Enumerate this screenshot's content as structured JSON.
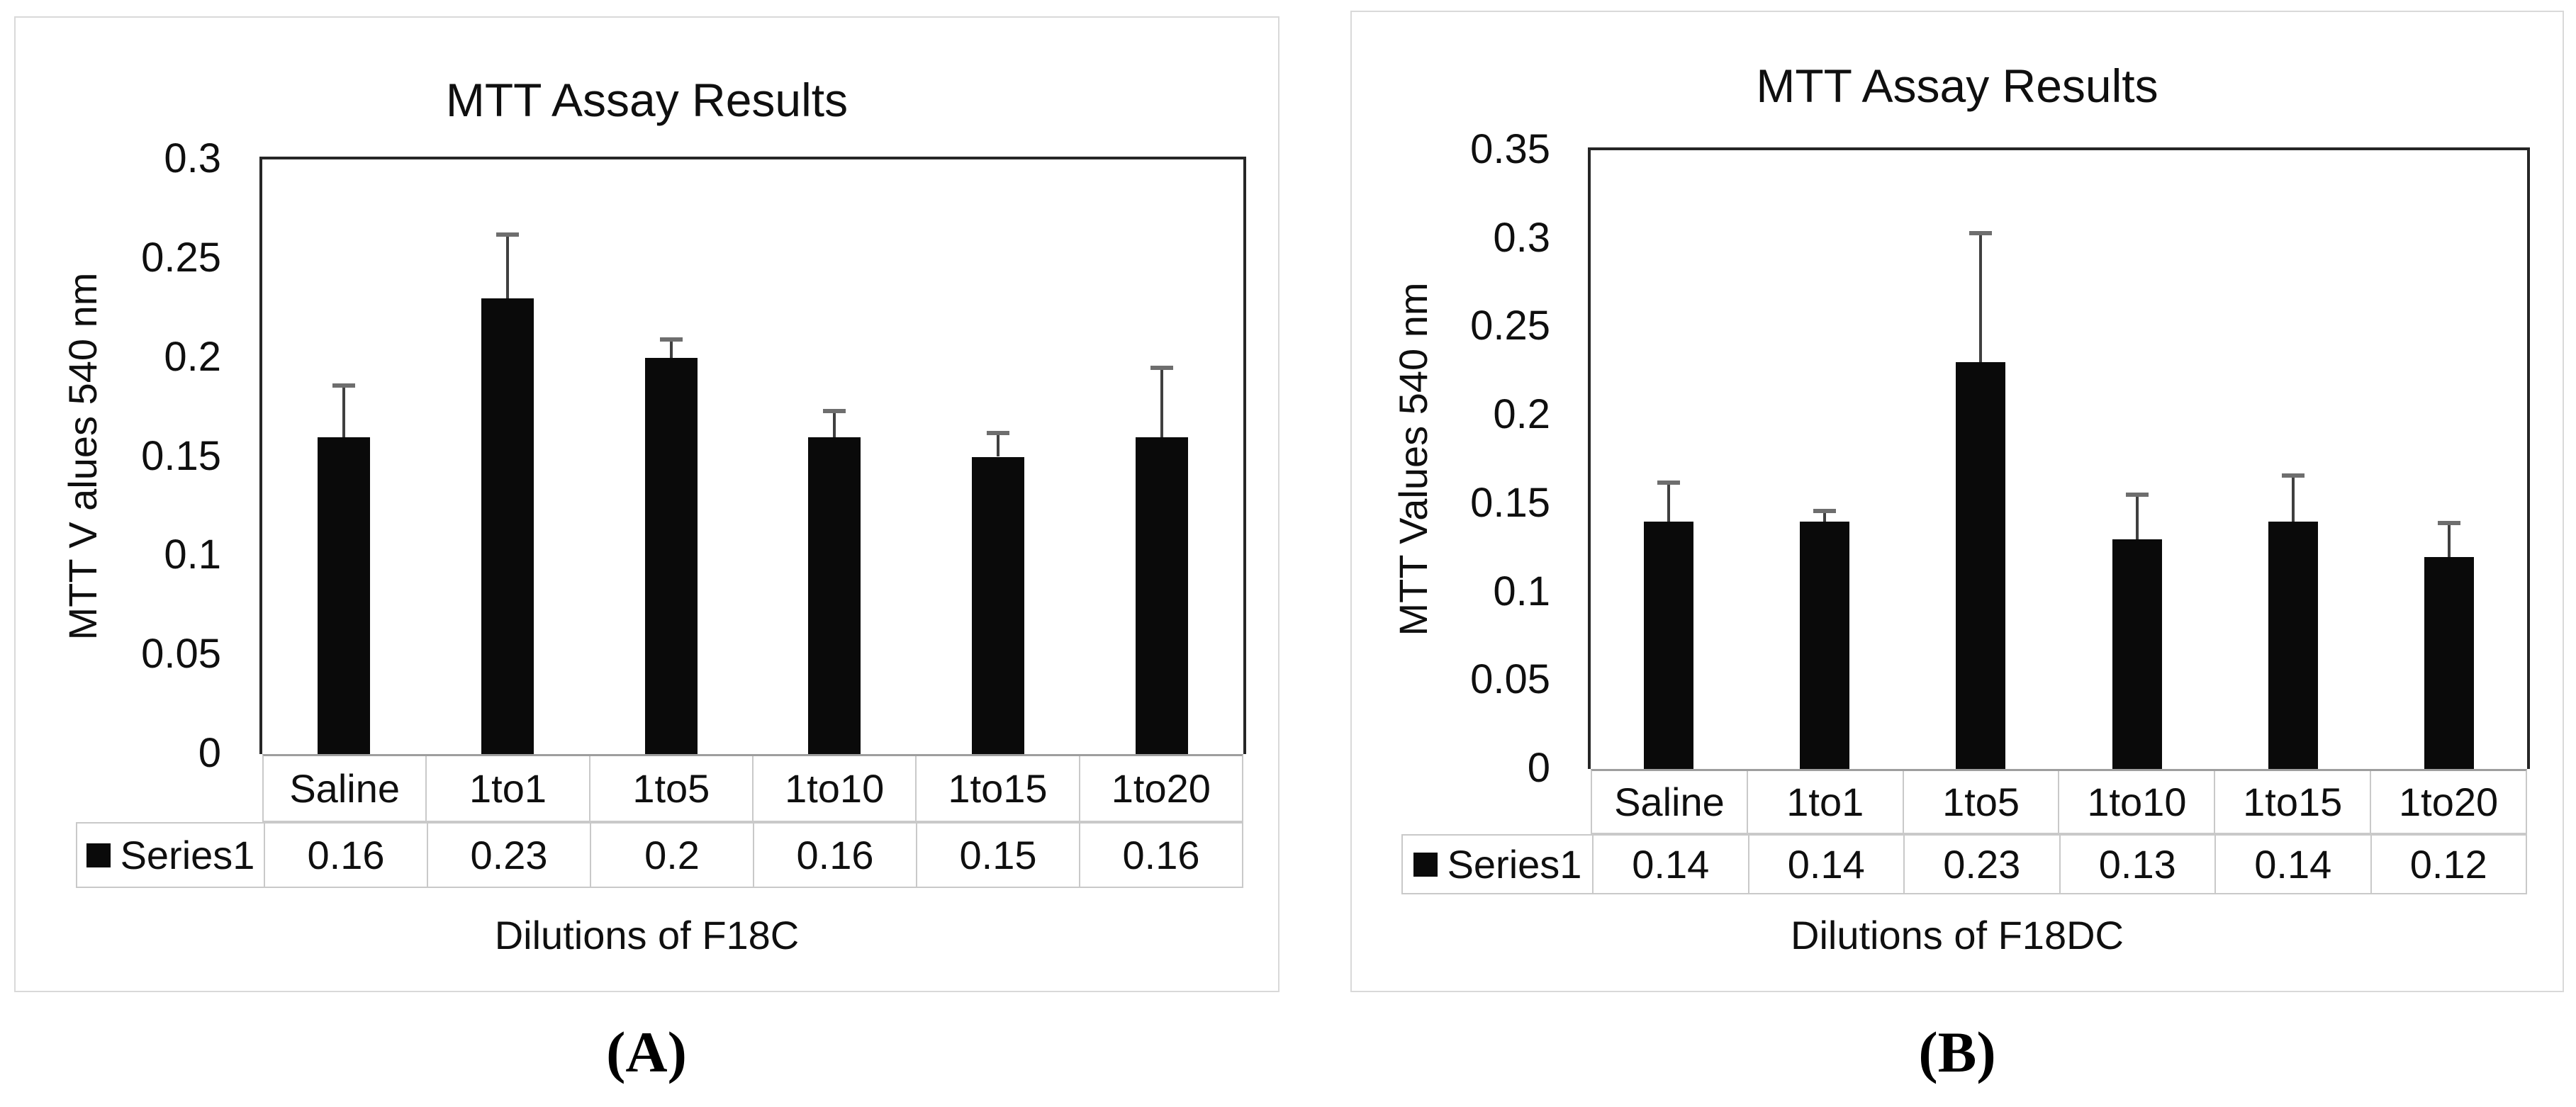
{
  "figure": {
    "panel_a_label": "(A)",
    "panel_b_label": "(B)"
  },
  "chart_data": [
    {
      "id": "A",
      "type": "bar",
      "title": "MTT Assay Results",
      "xlabel": "Dilutions of F18C",
      "ylabel": "MTT V alues 540 nm",
      "categories": [
        "Saline",
        "1to1",
        "1to5",
        "1to10",
        "1to15",
        "1to20"
      ],
      "series": [
        {
          "name": "Series1",
          "values": [
            0.16,
            0.23,
            0.2,
            0.16,
            0.15,
            0.16
          ],
          "errors_up": [
            0.026,
            0.032,
            0.009,
            0.013,
            0.012,
            0.035
          ]
        }
      ],
      "ylim": [
        0,
        0.3
      ],
      "yticks": [
        "0.3",
        "0.25",
        "0.2",
        "0.15",
        "0.1",
        "0.05",
        "0"
      ],
      "grid": false,
      "legend_position": "table-left",
      "bar_color": "#0a0a0a",
      "table": {
        "legend_label": "Series1",
        "values_display": [
          "0.16",
          "0.23",
          "0.2",
          "0.16",
          "0.15",
          "0.16"
        ]
      }
    },
    {
      "id": "B",
      "type": "bar",
      "title": "MTT Assay Results",
      "xlabel": "Dilutions of F18DC",
      "ylabel": "MTT Values 540 nm",
      "categories": [
        "Saline",
        "1to1",
        "1to5",
        "1to10",
        "1to15",
        "1to20"
      ],
      "series": [
        {
          "name": "Series1",
          "values": [
            0.14,
            0.14,
            0.23,
            0.13,
            0.14,
            0.12
          ],
          "errors_up": [
            0.022,
            0.006,
            0.073,
            0.025,
            0.026,
            0.019
          ]
        }
      ],
      "ylim": [
        0,
        0.35
      ],
      "yticks": [
        "0.35",
        "0.3",
        "0.25",
        "0.2",
        "0.15",
        "0.1",
        "0.05",
        "0"
      ],
      "grid": false,
      "legend_position": "table-left",
      "bar_color": "#0a0a0a",
      "table": {
        "legend_label": "Series1",
        "values_display": [
          "0.14",
          "0.14",
          "0.23",
          "0.13",
          "0.14",
          "0.12"
        ]
      }
    }
  ]
}
